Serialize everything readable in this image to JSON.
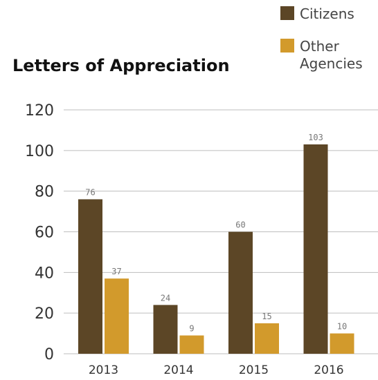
{
  "chart_data": {
    "type": "bar",
    "title": "Letters of Appreciation",
    "categories": [
      "2013",
      "2014",
      "2015",
      "2016"
    ],
    "series": [
      {
        "name": "Citizens",
        "values": [
          76,
          24,
          60,
          103
        ],
        "color": "#5c4626"
      },
      {
        "name": "Other Agencies",
        "values": [
          37,
          9,
          15,
          10
        ],
        "color": "#d29a2c"
      }
    ],
    "yticks": [
      0,
      20,
      40,
      60,
      80,
      100,
      120
    ],
    "ylim": [
      0,
      120
    ],
    "grid": true,
    "legend_position": "top-right",
    "data_labels": true
  }
}
